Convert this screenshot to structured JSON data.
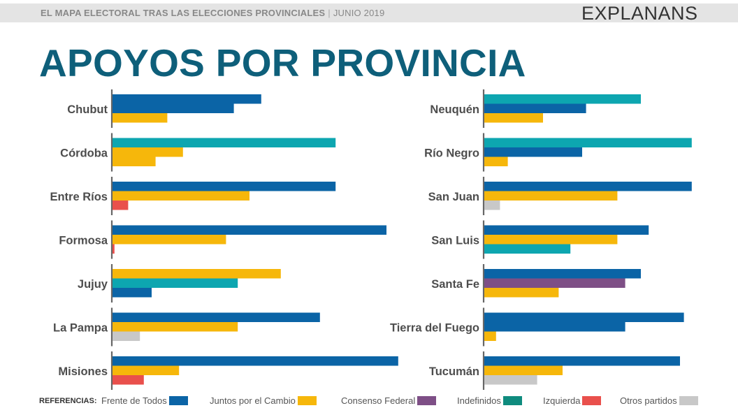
{
  "header": {
    "subtitle_bold": "EL MAPA ELECTORAL TRAS LAS ELECCIONES PROVINCIALES",
    "subtitle_separator": "|",
    "subtitle_date": "JUNIO 2019",
    "brand": "EXPLANANS",
    "title": "APOYOS POR PROVINCIA"
  },
  "legend": {
    "lead": "REFERENCIAS:",
    "items": [
      {
        "label": "Frente de Todos",
        "color": "#0b64a6"
      },
      {
        "label": "Juntos por el Cambio",
        "color": "#f6b70b"
      },
      {
        "label": "Consenso Federal",
        "color": "#7e4f86"
      },
      {
        "label": "Indefinidos",
        "color": "#0f8b7e"
      },
      {
        "label": "Izquierda",
        "color": "#e9504c"
      },
      {
        "label": "Otros partidos",
        "color": "#c8c8c8"
      }
    ]
  },
  "chart_data": {
    "type": "bar",
    "orientation": "horizontal",
    "scale": "relative (no axis shown)",
    "extra_colors": {
      "teal_bar": "#0da6b0"
    },
    "panels": [
      {
        "provinces": [
          {
            "name": "Chubut",
            "bars": [
              {
                "color": "#0b64a6",
                "value": 38
              },
              {
                "color": "#0b64a6",
                "value": 31
              },
              {
                "color": "#f6b70b",
                "value": 14
              }
            ]
          },
          {
            "name": "Córdoba",
            "bars": [
              {
                "color": "#0da6b0",
                "value": 57
              },
              {
                "color": "#f6b70b",
                "value": 18
              },
              {
                "color": "#f6b70b",
                "value": 11
              }
            ]
          },
          {
            "name": "Entre Ríos",
            "bars": [
              {
                "color": "#0b64a6",
                "value": 57
              },
              {
                "color": "#f6b70b",
                "value": 35
              },
              {
                "color": "#e9504c",
                "value": 4
              }
            ]
          },
          {
            "name": "Formosa",
            "bars": [
              {
                "color": "#0b64a6",
                "value": 70
              },
              {
                "color": "#f6b70b",
                "value": 29
              },
              {
                "color": "#e9504c",
                "value": 0.5
              }
            ]
          },
          {
            "name": "Jujuy",
            "bars": [
              {
                "color": "#f6b70b",
                "value": 43
              },
              {
                "color": "#0da6b0",
                "value": 32
              },
              {
                "color": "#0b64a6",
                "value": 10
              }
            ]
          },
          {
            "name": "La Pampa",
            "bars": [
              {
                "color": "#0b64a6",
                "value": 53
              },
              {
                "color": "#f6b70b",
                "value": 32
              },
              {
                "color": "#c8c8c8",
                "value": 7
              }
            ]
          },
          {
            "name": "Misiones",
            "bars": [
              {
                "color": "#0b64a6",
                "value": 73
              },
              {
                "color": "#f6b70b",
                "value": 17
              },
              {
                "color": "#e9504c",
                "value": 8
              }
            ]
          }
        ]
      },
      {
        "provinces": [
          {
            "name": "Neuquén",
            "bars": [
              {
                "color": "#0da6b0",
                "value": 40
              },
              {
                "color": "#0b64a6",
                "value": 26
              },
              {
                "color": "#f6b70b",
                "value": 15
              }
            ]
          },
          {
            "name": "Río Negro",
            "bars": [
              {
                "color": "#0da6b0",
                "value": 53
              },
              {
                "color": "#0b64a6",
                "value": 25
              },
              {
                "color": "#f6b70b",
                "value": 6
              }
            ]
          },
          {
            "name": "San Juan",
            "bars": [
              {
                "color": "#0b64a6",
                "value": 53
              },
              {
                "color": "#f6b70b",
                "value": 34
              },
              {
                "color": "#c8c8c8",
                "value": 4
              }
            ]
          },
          {
            "name": "San Luis",
            "bars": [
              {
                "color": "#0b64a6",
                "value": 42
              },
              {
                "color": "#f6b70b",
                "value": 34
              },
              {
                "color": "#0da6b0",
                "value": 22
              }
            ]
          },
          {
            "name": "Santa Fe",
            "bars": [
              {
                "color": "#0b64a6",
                "value": 40
              },
              {
                "color": "#7e4f86",
                "value": 36
              },
              {
                "color": "#f6b70b",
                "value": 19
              }
            ]
          },
          {
            "name": "Tierra del Fuego",
            "bars": [
              {
                "color": "#0b64a6",
                "value": 51
              },
              {
                "color": "#0b64a6",
                "value": 36
              },
              {
                "color": "#f6b70b",
                "value": 3
              }
            ]
          },
          {
            "name": "Tucumán",
            "bars": [
              {
                "color": "#0b64a6",
                "value": 50
              },
              {
                "color": "#f6b70b",
                "value": 20
              },
              {
                "color": "#c8c8c8",
                "value": 13.5
              }
            ]
          }
        ]
      }
    ]
  }
}
